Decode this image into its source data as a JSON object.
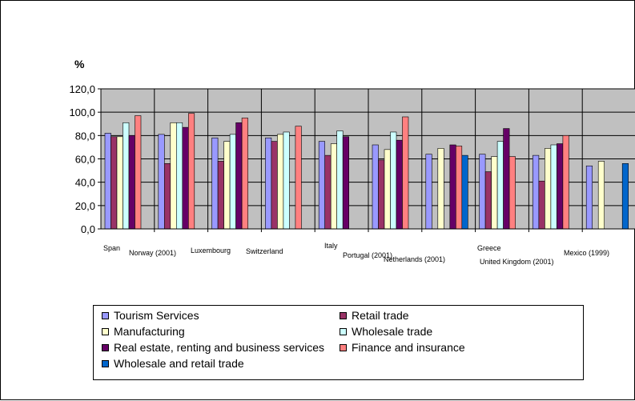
{
  "chart_data": {
    "type": "bar",
    "ylabel": "%",
    "ylim": [
      0,
      120
    ],
    "yticks": [
      "0,0",
      "20,0",
      "40,0",
      "60,0",
      "80,0",
      "100,0",
      "120,0"
    ],
    "grid": true,
    "legend_position": "bottom",
    "categories": [
      "Span",
      "Norway (2001)",
      "Luxembourg",
      "Switzerland",
      "Italy",
      "Portugal (2001)",
      "Netherlands (2001)",
      "Greece",
      "United Kingdom (2001)",
      "Mexico (1999)"
    ],
    "series": [
      {
        "name": "Tourism Services",
        "color": "#9999ff",
        "values": [
          82,
          81,
          78,
          78,
          75,
          72,
          64,
          64,
          63,
          54
        ]
      },
      {
        "name": "Retail trade",
        "color": "#993366",
        "values": [
          79,
          56,
          58,
          75,
          63,
          59,
          null,
          49,
          41,
          null
        ]
      },
      {
        "name": "Manufacturing",
        "color": "#ffffcc",
        "values": [
          79,
          91,
          75,
          81,
          73,
          68,
          69,
          62,
          69,
          58
        ]
      },
      {
        "name": "Wholesale trade",
        "color": "#ccffff",
        "values": [
          91,
          91,
          81,
          83,
          84,
          83,
          null,
          75,
          72,
          null
        ]
      },
      {
        "name": "Real estate, renting and business services",
        "color": "#660066",
        "values": [
          80,
          87,
          91,
          null,
          79,
          76,
          72,
          86,
          73,
          null
        ]
      },
      {
        "name": "Finance and insurance",
        "color": "#ff8080",
        "values": [
          97,
          99,
          95,
          88,
          null,
          96,
          71,
          62,
          80,
          null
        ]
      },
      {
        "name": "Wholesale and retail trade",
        "color": "#0066cc",
        "values": [
          null,
          null,
          null,
          null,
          null,
          null,
          63,
          null,
          null,
          56
        ]
      }
    ]
  }
}
